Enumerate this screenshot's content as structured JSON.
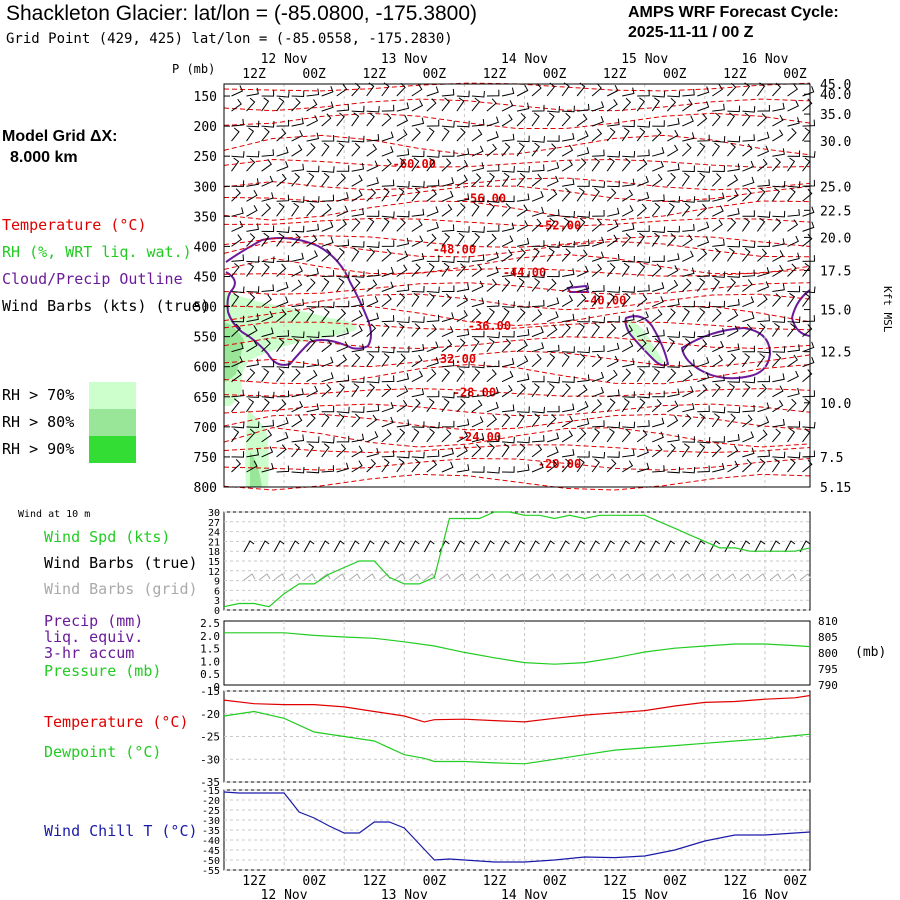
{
  "header": {
    "title": "Shackleton Glacier:  lat/lon = (-85.0800, -175.3800)",
    "subtitle": "Grid Point (429, 425) lat/lon = (-85.0558, -175.2830)",
    "cycle_line1": "AMPS WRF Forecast Cycle:",
    "cycle_line2": "2025-11-11 / 00  Z"
  },
  "model_grid": {
    "line1": "Model Grid ΔX:",
    "line2": "8.000 km"
  },
  "legend": {
    "temperature": "Temperature (°C)",
    "rh": "RH (%, WRT liq. wat.)",
    "cloud": "Cloud/Precip Outline",
    "wind": "Wind Barbs (kts) (true)",
    "rh70": "RH > 70%",
    "rh80": "RH > 80%",
    "rh90": "RH > 90%"
  },
  "colors": {
    "temp": "#e00000",
    "rh70": "#ccffcc",
    "rh80": "#99e699",
    "rh90": "#33dd33",
    "cloud": "#6a1b9a",
    "green": "#22cc22",
    "gray": "#aaaaaa",
    "blue": "#1a1aaa"
  },
  "time_axis": {
    "top_ticks": [
      "12Z",
      "00Z",
      "12Z",
      "00Z",
      "12Z",
      "00Z",
      "12Z",
      "00Z",
      "12Z",
      "00Z"
    ],
    "top_dates": [
      "12 Nov",
      "13 Nov",
      "14 Nov",
      "15 Nov",
      "16 Nov"
    ],
    "bottom_ticks": [
      "12Z",
      "00Z",
      "12Z",
      "00Z",
      "12Z",
      "00Z",
      "12Z",
      "00Z",
      "12Z",
      "00Z"
    ],
    "bottom_dates": [
      "12 Nov",
      "13 Nov",
      "14 Nov",
      "15 Nov",
      "16 Nov"
    ]
  },
  "chart_data": [
    {
      "type": "contour",
      "name": "cross-section",
      "ylabel": "P (mb)",
      "pressure_levels": [
        150,
        200,
        250,
        300,
        350,
        400,
        450,
        500,
        550,
        600,
        650,
        700,
        750,
        800
      ],
      "p_range": [
        130,
        800
      ],
      "height_ticks_kft": [
        "45.0",
        "40.0",
        "35.0",
        "30.0",
        "25.0",
        "22.5",
        "20.0",
        "17.5",
        "15.0",
        "12.5",
        "10.0",
        "7.5",
        "5.15"
      ],
      "height_tick_pressures": [
        130,
        147,
        180,
        225,
        300,
        340,
        385,
        440,
        505,
        575,
        660,
        750,
        800
      ],
      "right_label": "Kft MSL",
      "temperature_labels": [
        {
          "label": "-60.00",
          "hour": 38,
          "p": 263
        },
        {
          "label": "-56.00",
          "hour": 52,
          "p": 320
        },
        {
          "label": "-52.00",
          "hour": 67,
          "p": 365
        },
        {
          "label": "-48.00",
          "hour": 46,
          "p": 405
        },
        {
          "label": "-44.00",
          "hour": 60,
          "p": 443
        },
        {
          "label": "-40.00",
          "hour": 76,
          "p": 490
        },
        {
          "label": "-36.00",
          "hour": 53,
          "p": 532
        },
        {
          "label": "-32.00",
          "hour": 46,
          "p": 587
        },
        {
          "label": "-28.00",
          "hour": 50,
          "p": 643
        },
        {
          "label": "-24.00",
          "hour": 51,
          "p": 717
        },
        {
          "label": "-20.00",
          "hour": 67,
          "p": 762
        }
      ]
    },
    {
      "type": "line",
      "name": "wind",
      "panel_label": "Wind at 10 m",
      "legend_speed": "Wind Spd (kts)",
      "legend_true": "Wind Barbs (true)",
      "legend_grid": "Wind Barbs (grid)",
      "yticks": [
        "30",
        "27",
        "24",
        "21",
        "18",
        "15",
        "12",
        "9",
        "6",
        "3",
        "0"
      ],
      "ylim": [
        0,
        30
      ],
      "hours": [
        0,
        3,
        6,
        9,
        12,
        15,
        18,
        21,
        24,
        27,
        30,
        33,
        36,
        39,
        42,
        45,
        48,
        51,
        54,
        57,
        60,
        63,
        66,
        69,
        72,
        75,
        78,
        81,
        84,
        87,
        90,
        93,
        96,
        99,
        102,
        105,
        108,
        111,
        114,
        117
      ],
      "speed": [
        1,
        2,
        2,
        1,
        5,
        8,
        8,
        11,
        13,
        15,
        15,
        10,
        8,
        8,
        10,
        28,
        28,
        28,
        30,
        30,
        29,
        29,
        28,
        29,
        28,
        29,
        29,
        29,
        29,
        27,
        25,
        23,
        21,
        19,
        19,
        18,
        18,
        18,
        18,
        19
      ]
    },
    {
      "type": "line",
      "name": "precip-pressure",
      "legend_precip": "Precip (mm)",
      "legend_liq": "liq. equiv.",
      "legend_accum": "3-hr accum",
      "legend_pressure": "Pressure (mb)",
      "y_left_ticks": [
        "2.5",
        "2.0",
        "1.5",
        "1.0",
        "0.5",
        "0"
      ],
      "y_right_ticks": [
        "810",
        "805",
        "800",
        "795",
        "790"
      ],
      "y_right_unit": "(mb)",
      "ylim_mb": [
        790,
        810
      ],
      "hours": [
        0,
        6,
        12,
        18,
        24,
        30,
        36,
        42,
        48,
        54,
        60,
        66,
        72,
        78,
        84,
        90,
        96,
        102,
        108,
        114,
        117
      ],
      "pressure": [
        806.3,
        806.3,
        806.3,
        805.5,
        805.0,
        804.6,
        803.5,
        802.2,
        800.2,
        798.5,
        797.0,
        796.5,
        797.0,
        798.5,
        800.3,
        801.5,
        802.2,
        802.8,
        802.8,
        802.3,
        802.0
      ]
    },
    {
      "type": "line",
      "name": "temperature-dewpoint",
      "legend_temp": "Temperature (°C)",
      "legend_dew": "Dewpoint (°C)",
      "yticks": [
        "-15",
        "-20",
        "-25",
        "-30",
        "-35"
      ],
      "ylim": [
        -35,
        -15
      ],
      "hours": [
        0,
        6,
        12,
        18,
        24,
        30,
        36,
        40,
        42,
        48,
        54,
        60,
        66,
        72,
        78,
        84,
        90,
        96,
        102,
        108,
        114,
        117
      ],
      "temperature": [
        -17.0,
        -17.8,
        -18.0,
        -18.0,
        -18.5,
        -19.5,
        -20.5,
        -21.8,
        -21.3,
        -21.2,
        -21.5,
        -21.8,
        -21.0,
        -20.3,
        -19.8,
        -19.3,
        -18.3,
        -17.5,
        -17.3,
        -16.8,
        -16.5,
        -16.0
      ],
      "dewpoint": [
        -20.5,
        -19.5,
        -21.0,
        -24.0,
        -25.0,
        -26.0,
        -29.0,
        -29.8,
        -30.5,
        -30.5,
        -30.8,
        -31.0,
        -30.0,
        -29.0,
        -28.0,
        -27.5,
        -27.0,
        -26.5,
        -26.0,
        -25.5,
        -24.8,
        -24.5
      ]
    },
    {
      "type": "line",
      "name": "wind-chill",
      "legend": "Wind Chill T (°C)",
      "yticks": [
        "-15",
        "-20",
        "-25",
        "-30",
        "-35",
        "-40",
        "-45",
        "-50",
        "-55"
      ],
      "ylim": [
        -55,
        -15
      ],
      "hours": [
        0,
        3,
        6,
        9,
        12,
        15,
        18,
        21,
        24,
        27,
        30,
        33,
        36,
        39,
        42,
        45,
        48,
        54,
        60,
        66,
        72,
        78,
        84,
        90,
        96,
        102,
        108,
        114,
        117
      ],
      "windchill": [
        -16.0,
        -16.5,
        -16.5,
        -16.5,
        -16.5,
        -26.0,
        -29.0,
        -33.0,
        -36.5,
        -36.5,
        -31.0,
        -31.0,
        -34.0,
        -42.0,
        -50.0,
        -49.5,
        -50.0,
        -51.0,
        -51.0,
        -50.0,
        -48.5,
        -48.8,
        -48.0,
        -45.0,
        -40.5,
        -37.5,
        -37.5,
        -36.5,
        -36.0
      ]
    }
  ]
}
